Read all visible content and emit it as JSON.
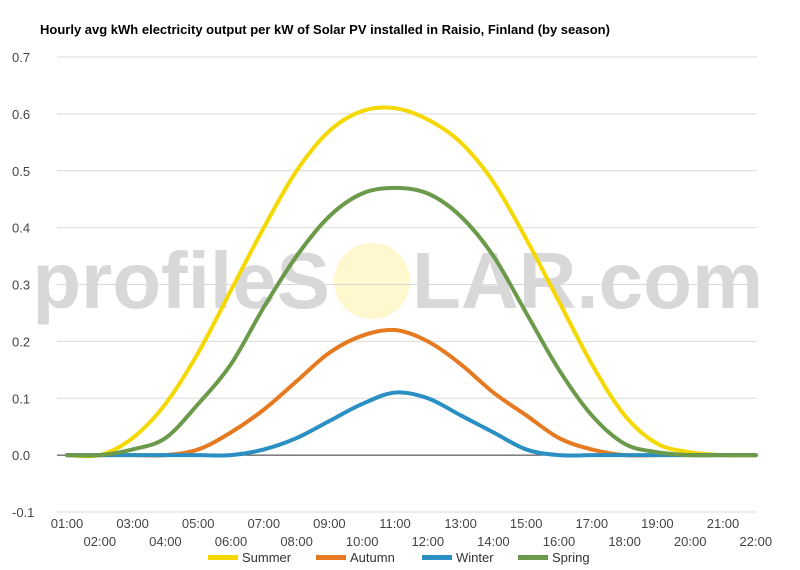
{
  "chart_data": {
    "type": "line",
    "title": "Hourly avg kWh electricity output per kW of Solar PV installed in Raisio, Finland (by season)",
    "categories": [
      "01:00",
      "02:00",
      "03:00",
      "04:00",
      "05:00",
      "06:00",
      "07:00",
      "08:00",
      "09:00",
      "10:00",
      "11:00",
      "12:00",
      "13:00",
      "14:00",
      "15:00",
      "16:00",
      "17:00",
      "18:00",
      "19:00",
      "20:00",
      "21:00",
      "22:00"
    ],
    "ylim": [
      -0.1,
      0.7
    ],
    "yticks": [
      "-0.1",
      "0.0",
      "0.1",
      "0.2",
      "0.3",
      "0.4",
      "0.5",
      "0.6",
      "0.7"
    ],
    "grid": true,
    "legend_position": "bottom",
    "watermark_left": "profileS",
    "watermark_right": "LAR.com",
    "series": [
      {
        "name": "Summer",
        "color": "#f5d800",
        "values": [
          0.0,
          0.0,
          0.03,
          0.09,
          0.18,
          0.29,
          0.4,
          0.5,
          0.57,
          0.605,
          0.61,
          0.59,
          0.55,
          0.48,
          0.38,
          0.27,
          0.16,
          0.07,
          0.02,
          0.005,
          0.0,
          0.0
        ]
      },
      {
        "name": "Autumn",
        "color": "#e57a20",
        "values": [
          0.0,
          0.0,
          0.0,
          0.0,
          0.01,
          0.04,
          0.08,
          0.13,
          0.18,
          0.21,
          0.22,
          0.2,
          0.16,
          0.11,
          0.07,
          0.03,
          0.01,
          0.0,
          0.0,
          0.0,
          0.0,
          0.0
        ]
      },
      {
        "name": "Winter",
        "color": "#2a8fc2",
        "values": [
          0.0,
          0.0,
          0.0,
          0.0,
          0.0,
          0.0,
          0.01,
          0.03,
          0.06,
          0.09,
          0.11,
          0.1,
          0.07,
          0.04,
          0.01,
          0.0,
          0.0,
          0.0,
          0.0,
          0.0,
          0.0,
          0.0
        ]
      },
      {
        "name": "Spring",
        "color": "#6a9a4a",
        "values": [
          0.0,
          0.0,
          0.01,
          0.03,
          0.09,
          0.16,
          0.26,
          0.35,
          0.42,
          0.46,
          0.47,
          0.46,
          0.42,
          0.35,
          0.25,
          0.15,
          0.07,
          0.02,
          0.005,
          0.0,
          0.0,
          0.0
        ]
      }
    ]
  }
}
